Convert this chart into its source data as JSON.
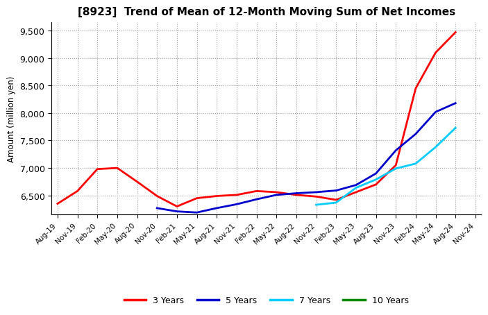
{
  "title": "[8923]  Trend of Mean of 12-Month Moving Sum of Net Incomes",
  "ylabel": "Amount (million yen)",
  "background_color": "#ffffff",
  "grid_color": "#aaaaaa",
  "ylim": [
    6150,
    9650
  ],
  "yticks": [
    6500,
    7000,
    7500,
    8000,
    8500,
    9000,
    9500
  ],
  "series": {
    "3 Years": {
      "color": "#ff0000",
      "x": [
        "Aug-19",
        "Nov-19",
        "Feb-20",
        "May-20",
        "Aug-20",
        "Nov-20",
        "Feb-21",
        "May-21",
        "Aug-21",
        "Nov-21",
        "Feb-22",
        "May-22",
        "Aug-22",
        "Nov-22",
        "Feb-23",
        "May-23",
        "Aug-23",
        "Nov-23",
        "Feb-24",
        "May-24",
        "Aug-24"
      ],
      "y": [
        6350,
        6580,
        6980,
        7000,
        6750,
        6490,
        6300,
        6450,
        6490,
        6510,
        6580,
        6560,
        6510,
        6480,
        6420,
        6560,
        6700,
        7050,
        8450,
        9100,
        9470
      ]
    },
    "5 Years": {
      "color": "#0000cc",
      "x": [
        "Nov-20",
        "Feb-21",
        "May-21",
        "Aug-21",
        "Nov-21",
        "Feb-22",
        "May-22",
        "Aug-22",
        "Nov-22",
        "Feb-23",
        "May-23",
        "Aug-23",
        "Nov-23",
        "Feb-24",
        "May-24",
        "Aug-24"
      ],
      "y": [
        6270,
        6210,
        6190,
        6270,
        6340,
        6430,
        6510,
        6540,
        6560,
        6590,
        6690,
        6900,
        7320,
        7620,
        8020,
        8180
      ]
    },
    "7 Years": {
      "color": "#00ccff",
      "x": [
        "Nov-22",
        "Feb-23",
        "May-23",
        "Aug-23",
        "Nov-23",
        "Feb-24",
        "May-24",
        "Aug-24"
      ],
      "y": [
        6330,
        6370,
        6640,
        6790,
        6990,
        7080,
        7380,
        7730
      ]
    },
    "10 Years": {
      "color": "#008800",
      "x": [],
      "y": []
    }
  },
  "legend_labels": [
    "3 Years",
    "5 Years",
    "7 Years",
    "10 Years"
  ],
  "legend_colors": [
    "#ff0000",
    "#0000cc",
    "#00ccff",
    "#008800"
  ],
  "x_tick_labels": [
    "Aug-19",
    "Nov-19",
    "Feb-20",
    "May-20",
    "Aug-20",
    "Nov-20",
    "Feb-21",
    "May-21",
    "Aug-21",
    "Nov-21",
    "Feb-22",
    "May-22",
    "Aug-22",
    "Nov-22",
    "Feb-23",
    "May-23",
    "Aug-23",
    "Nov-23",
    "Feb-24",
    "May-24",
    "Aug-24",
    "Nov-24"
  ]
}
